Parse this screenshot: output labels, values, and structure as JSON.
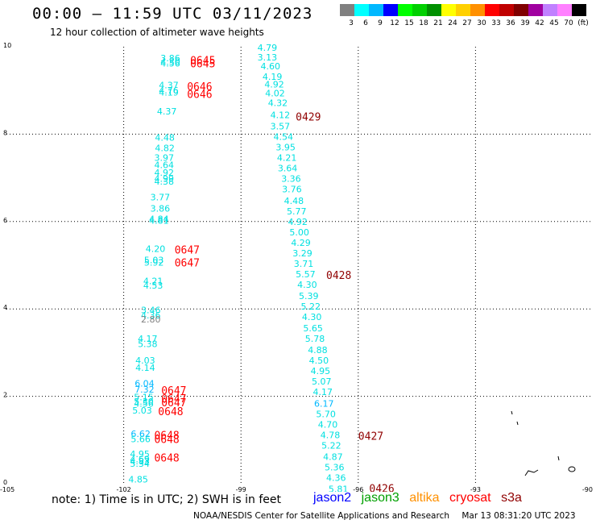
{
  "title": "00:00 – 11:59 UTC 03/11/2023",
  "subtitle": "12 hour collection of altimeter wave heights",
  "colorbar": {
    "colors": [
      "#808080",
      "#00ffff",
      "#00b8ff",
      "#0000ff",
      "#00ff00",
      "#00d000",
      "#009000",
      "#ffff00",
      "#ffd000",
      "#ff9000",
      "#ff0000",
      "#c00000",
      "#800000",
      "#a000a0",
      "#c080ff",
      "#ff80ff",
      "#000000"
    ],
    "labels": [
      "3",
      "6",
      "9",
      "12",
      "15",
      "18",
      "21",
      "24",
      "27",
      "30",
      "33",
      "36",
      "39",
      "42",
      "45",
      "70",
      "(ft)"
    ]
  },
  "footer_note": "note:  1) Time is in UTC;  2) SWH is in feet",
  "legend": [
    {
      "name": "jason2",
      "color": "#0000ff"
    },
    {
      "name": "jason3",
      "color": "#00a000"
    },
    {
      "name": "altika",
      "color": "#ff9000"
    },
    {
      "name": "cryosat",
      "color": "#ff0000"
    },
    {
      "name": "s3a",
      "color": "#900000"
    }
  ],
  "credit": {
    "org": "NOAA/NESDIS Center for Satellite Applications and Research",
    "timestamp": "Mar 13 08:31:20 UTC 2023"
  },
  "chart_data": {
    "type": "scatter",
    "title": "00:00 – 11:59 UTC 03/11/2023",
    "subtitle": "12 hour collection of altimeter wave heights",
    "xlim": [
      -105,
      -90
    ],
    "ylim": [
      0,
      10
    ],
    "x_ticks": [
      "-105",
      "-102",
      "-99",
      "-96",
      "-93",
      "-90"
    ],
    "y_ticks": [
      "0",
      "2",
      "4",
      "6",
      "8",
      "10"
    ],
    "grid": true,
    "points": [
      {
        "x": -101.06,
        "y": 9.74,
        "label": "3.86",
        "color": "#00e0e0"
      },
      {
        "x": -101.06,
        "y": 9.66,
        "label": "4.30",
        "color": "#00e0e0"
      },
      {
        "x": -101.06,
        "y": 9.62,
        "label": "4.56",
        "color": "#00e0e0"
      },
      {
        "x": -101.1,
        "y": 9.12,
        "label": "4.37",
        "color": "#00e0e0"
      },
      {
        "x": -101.1,
        "y": 9.0,
        "label": "4.76",
        "color": "#00e0e0"
      },
      {
        "x": -101.1,
        "y": 8.96,
        "label": "4.19",
        "color": "#00e0e0"
      },
      {
        "x": -101.15,
        "y": 8.52,
        "label": "4.37",
        "color": "#00e0e0"
      },
      {
        "x": -101.2,
        "y": 7.92,
        "label": "4.48",
        "color": "#00e0e0"
      },
      {
        "x": -101.2,
        "y": 7.68,
        "label": "4.82",
        "color": "#00e0e0"
      },
      {
        "x": -101.22,
        "y": 7.46,
        "label": "3.97",
        "color": "#00e0e0"
      },
      {
        "x": -101.22,
        "y": 7.3,
        "label": "4.64",
        "color": "#00e0e0"
      },
      {
        "x": -101.22,
        "y": 7.12,
        "label": "4.92",
        "color": "#00e0e0"
      },
      {
        "x": -101.22,
        "y": 6.98,
        "label": "4.99",
        "color": "#00e0e0"
      },
      {
        "x": -101.22,
        "y": 6.92,
        "label": "4.38",
        "color": "#00e0e0"
      },
      {
        "x": -101.32,
        "y": 6.56,
        "label": "3.77",
        "color": "#00e0e0"
      },
      {
        "x": -101.32,
        "y": 6.3,
        "label": "3.86",
        "color": "#00e0e0"
      },
      {
        "x": -101.35,
        "y": 6.06,
        "label": "4.84",
        "color": "#00e0e0"
      },
      {
        "x": -101.35,
        "y": 6.02,
        "label": "4.81",
        "color": "#00e0e0"
      },
      {
        "x": -101.44,
        "y": 5.38,
        "label": "4.20",
        "color": "#00e0e0"
      },
      {
        "x": -101.48,
        "y": 5.12,
        "label": "5.03",
        "color": "#00e0e0"
      },
      {
        "x": -101.48,
        "y": 5.06,
        "label": "5.92",
        "color": "#00e0e0"
      },
      {
        "x": -101.5,
        "y": 4.64,
        "label": "4.21",
        "color": "#00e0e0"
      },
      {
        "x": -101.5,
        "y": 4.54,
        "label": "4.53",
        "color": "#00e0e0"
      },
      {
        "x": -101.56,
        "y": 3.98,
        "label": "3.46",
        "color": "#00e0e0"
      },
      {
        "x": -101.56,
        "y": 3.86,
        "label": "4.36",
        "color": "#00e0e0"
      },
      {
        "x": -101.56,
        "y": 3.76,
        "label": "2.80",
        "color": "#808080"
      },
      {
        "x": -101.64,
        "y": 3.32,
        "label": "4.17",
        "color": "#00e0e0"
      },
      {
        "x": -101.64,
        "y": 3.2,
        "label": "5.38",
        "color": "#00e0e0"
      },
      {
        "x": -101.7,
        "y": 2.82,
        "label": "4.03",
        "color": "#00e0e0"
      },
      {
        "x": -101.7,
        "y": 2.66,
        "label": "4.14",
        "color": "#00e0e0"
      },
      {
        "x": -101.72,
        "y": 2.3,
        "label": "6.04",
        "color": "#00b8ff"
      },
      {
        "x": -101.72,
        "y": 2.16,
        "label": "7.32",
        "color": "#00b8ff"
      },
      {
        "x": -101.74,
        "y": 1.98,
        "label": "5.15",
        "color": "#00e0e0"
      },
      {
        "x": -101.74,
        "y": 1.88,
        "label": "5.30",
        "color": "#00e0e0"
      },
      {
        "x": -101.74,
        "y": 1.84,
        "label": "4.56",
        "color": "#00e0e0"
      },
      {
        "x": -101.78,
        "y": 1.68,
        "label": "5.03",
        "color": "#00e0e0"
      },
      {
        "x": -101.82,
        "y": 1.14,
        "label": "6.62",
        "color": "#00b8ff"
      },
      {
        "x": -101.82,
        "y": 1.02,
        "label": "5.66",
        "color": "#00e0e0"
      },
      {
        "x": -101.84,
        "y": 0.68,
        "label": "4.95",
        "color": "#00e0e0"
      },
      {
        "x": -101.84,
        "y": 0.56,
        "label": "4.69",
        "color": "#00e0e0"
      },
      {
        "x": -101.84,
        "y": 0.52,
        "label": "4.83",
        "color": "#00e0e0"
      },
      {
        "x": -101.84,
        "y": 0.46,
        "label": "5.34",
        "color": "#00e0e0"
      },
      {
        "x": -101.88,
        "y": 0.1,
        "label": "4.85",
        "color": "#00e0e0"
      },
      {
        "x": -98.58,
        "y": 9.98,
        "label": "4.79",
        "color": "#00e0e0"
      },
      {
        "x": -98.58,
        "y": 9.76,
        "label": "3.13",
        "color": "#00e0e0"
      },
      {
        "x": -98.5,
        "y": 9.56,
        "label": "4.60",
        "color": "#00e0e0"
      },
      {
        "x": -98.45,
        "y": 9.32,
        "label": "4.19",
        "color": "#00e0e0"
      },
      {
        "x": -98.4,
        "y": 9.14,
        "label": "4.92",
        "color": "#00e0e0"
      },
      {
        "x": -98.38,
        "y": 8.94,
        "label": "4.02",
        "color": "#00e0e0"
      },
      {
        "x": -98.31,
        "y": 8.72,
        "label": "4.32",
        "color": "#00e0e0"
      },
      {
        "x": -98.25,
        "y": 8.44,
        "label": "4.12",
        "color": "#00e0e0"
      },
      {
        "x": -98.25,
        "y": 8.18,
        "label": "3.57",
        "color": "#00e0e0"
      },
      {
        "x": -98.17,
        "y": 7.94,
        "label": "4.54",
        "color": "#00e0e0"
      },
      {
        "x": -98.11,
        "y": 7.7,
        "label": "3.95",
        "color": "#00e0e0"
      },
      {
        "x": -98.08,
        "y": 7.46,
        "label": "4.21",
        "color": "#00e0e0"
      },
      {
        "x": -98.06,
        "y": 7.22,
        "label": "3.64",
        "color": "#00e0e0"
      },
      {
        "x": -97.97,
        "y": 6.98,
        "label": "3.36",
        "color": "#00e0e0"
      },
      {
        "x": -97.95,
        "y": 6.74,
        "label": "3.76",
        "color": "#00e0e0"
      },
      {
        "x": -97.9,
        "y": 6.48,
        "label": "4.48",
        "color": "#00e0e0"
      },
      {
        "x": -97.83,
        "y": 6.24,
        "label": "5.77",
        "color": "#00e0e0"
      },
      {
        "x": -97.8,
        "y": 6.0,
        "label": "4.92",
        "color": "#00e0e0"
      },
      {
        "x": -97.76,
        "y": 5.76,
        "label": "5.00",
        "color": "#00e0e0"
      },
      {
        "x": -97.72,
        "y": 5.52,
        "label": "4.29",
        "color": "#00e0e0"
      },
      {
        "x": -97.68,
        "y": 5.28,
        "label": "3.29",
        "color": "#00e0e0"
      },
      {
        "x": -97.65,
        "y": 5.04,
        "label": "3.71",
        "color": "#00e0e0"
      },
      {
        "x": -97.6,
        "y": 4.8,
        "label": "5.57",
        "color": "#00e0e0"
      },
      {
        "x": -97.56,
        "y": 4.56,
        "label": "4.30",
        "color": "#00e0e0"
      },
      {
        "x": -97.52,
        "y": 4.3,
        "label": "5.39",
        "color": "#00e0e0"
      },
      {
        "x": -97.47,
        "y": 4.06,
        "label": "5.22",
        "color": "#00e0e0"
      },
      {
        "x": -97.44,
        "y": 3.82,
        "label": "4.30",
        "color": "#00e0e0"
      },
      {
        "x": -97.41,
        "y": 3.56,
        "label": "5.65",
        "color": "#00e0e0"
      },
      {
        "x": -97.36,
        "y": 3.32,
        "label": "5.78",
        "color": "#00e0e0"
      },
      {
        "x": -97.29,
        "y": 3.06,
        "label": "4.88",
        "color": "#00e0e0"
      },
      {
        "x": -97.26,
        "y": 2.82,
        "label": "4.50",
        "color": "#00e0e0"
      },
      {
        "x": -97.22,
        "y": 2.58,
        "label": "4.95",
        "color": "#00e0e0"
      },
      {
        "x": -97.19,
        "y": 2.34,
        "label": "5.07",
        "color": "#00e0e0"
      },
      {
        "x": -97.16,
        "y": 2.1,
        "label": "4.17",
        "color": "#00e0e0"
      },
      {
        "x": -97.13,
        "y": 1.84,
        "label": "6.17",
        "color": "#00b8ff"
      },
      {
        "x": -97.08,
        "y": 1.6,
        "label": "5.70",
        "color": "#00e0e0"
      },
      {
        "x": -97.03,
        "y": 1.36,
        "label": "4.70",
        "color": "#00e0e0"
      },
      {
        "x": -96.97,
        "y": 1.12,
        "label": "4.78",
        "color": "#00e0e0"
      },
      {
        "x": -96.94,
        "y": 0.88,
        "label": "5.22",
        "color": "#00e0e0"
      },
      {
        "x": -96.9,
        "y": 0.62,
        "label": "4.87",
        "color": "#00e0e0"
      },
      {
        "x": -96.86,
        "y": 0.38,
        "label": "5.36",
        "color": "#00e0e0"
      },
      {
        "x": -96.82,
        "y": 0.14,
        "label": "4.36",
        "color": "#00e0e0"
      },
      {
        "x": -96.76,
        "y": -0.12,
        "label": "5.81",
        "color": "#00e0e0"
      }
    ],
    "time_labels": [
      {
        "x": -100.3,
        "y": 9.7,
        "label": "0645",
        "color": "#ff0000"
      },
      {
        "x": -100.3,
        "y": 9.62,
        "label": "0645",
        "color": "#ff0000"
      },
      {
        "x": -100.38,
        "y": 9.1,
        "label": "0646",
        "color": "#ff0000"
      },
      {
        "x": -100.38,
        "y": 8.92,
        "label": "0646",
        "color": "#ff0000"
      },
      {
        "x": -97.6,
        "y": 8.4,
        "label": "0429",
        "color": "#900000"
      },
      {
        "x": -100.7,
        "y": 5.36,
        "label": "0647",
        "color": "#ff0000"
      },
      {
        "x": -100.7,
        "y": 5.06,
        "label": "0647",
        "color": "#ff0000"
      },
      {
        "x": -96.82,
        "y": 4.78,
        "label": "0428",
        "color": "#900000"
      },
      {
        "x": -101.04,
        "y": 2.14,
        "label": "0647",
        "color": "#ff0000"
      },
      {
        "x": -101.04,
        "y": 1.96,
        "label": "0647",
        "color": "#ff0000"
      },
      {
        "x": -101.04,
        "y": 1.86,
        "label": "0647",
        "color": "#ff0000"
      },
      {
        "x": -101.12,
        "y": 1.66,
        "label": "0648",
        "color": "#ff0000"
      },
      {
        "x": -101.22,
        "y": 1.12,
        "label": "0648",
        "color": "#ff0000"
      },
      {
        "x": -101.22,
        "y": 1.02,
        "label": "0648",
        "color": "#ff0000"
      },
      {
        "x": -101.22,
        "y": 0.6,
        "label": "0648",
        "color": "#ff0000"
      },
      {
        "x": -96.0,
        "y": 1.1,
        "label": "0427",
        "color": "#900000"
      },
      {
        "x": -95.72,
        "y": -0.1,
        "label": "0426",
        "color": "#900000"
      }
    ]
  }
}
